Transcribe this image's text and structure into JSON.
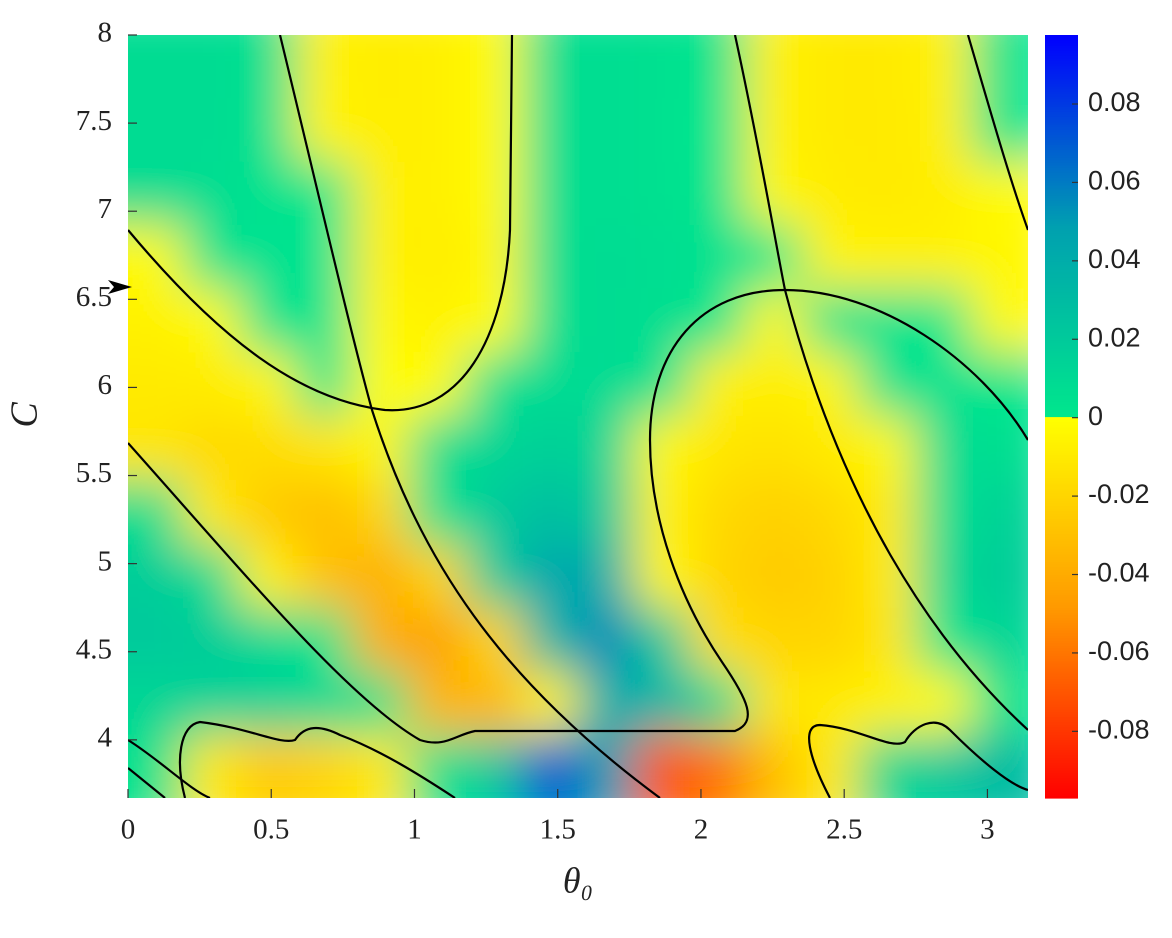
{
  "chart_data": {
    "type": "heatmap",
    "xlabel": "θ₀",
    "ylabel": "C",
    "xlim": [
      0,
      3.1416
    ],
    "ylim": [
      3.67,
      8
    ],
    "xticks": [
      0,
      0.5,
      1,
      1.5,
      2,
      2.5,
      3
    ],
    "yticks": [
      4,
      4.5,
      5,
      5.5,
      6,
      6.5,
      7,
      7.5,
      8
    ],
    "clim": [
      -0.097,
      0.0976
    ],
    "cticks": [
      -0.08,
      -0.06,
      -0.04,
      -0.02,
      0,
      0.02,
      0.04,
      0.06,
      0.08
    ],
    "colormap": {
      "negative": [
        "#ffff00",
        "#ff9900",
        "#ff0000"
      ],
      "positive": [
        "#00e88c",
        "#00a0b0",
        "#0000ff"
      ]
    },
    "x": [
      0.098,
      0.295,
      0.49,
      0.69,
      0.88,
      1.08,
      1.28,
      1.47,
      1.67,
      1.87,
      2.06,
      2.26,
      2.45,
      2.65,
      2.85,
      3.04
    ],
    "y": [
      7.82,
      7.46,
      7.1,
      6.74,
      6.38,
      6.02,
      5.66,
      5.29,
      4.93,
      4.57,
      4.21,
      3.85
    ],
    "z": [
      [
        0.008,
        0.008,
        0.005,
        -0.006,
        -0.008,
        -0.007,
        -0.002,
        0.006,
        0.007,
        0.005,
        0.002,
        -0.006,
        -0.01,
        -0.01,
        -0.006,
        0.003
      ],
      [
        0.008,
        0.008,
        0.004,
        -0.005,
        -0.008,
        -0.007,
        -0.002,
        0.006,
        0.007,
        0.005,
        0.001,
        -0.006,
        -0.01,
        -0.01,
        -0.007,
        0.002
      ],
      [
        0.008,
        0.007,
        0.004,
        0.001,
        -0.007,
        -0.007,
        -0.002,
        0.006,
        0.007,
        0.005,
        0.002,
        -0.004,
        -0.009,
        -0.01,
        -0.008,
        -0.002
      ],
      [
        -0.002,
        0.004,
        0.005,
        0.003,
        -0.006,
        -0.008,
        -0.004,
        0.006,
        0.008,
        0.007,
        0.004,
        0,
        -0.005,
        -0.006,
        -0.006,
        -0.004
      ],
      [
        -0.006,
        -0.002,
        0.004,
        0.002,
        -0.004,
        -0.006,
        -0.001,
        0.006,
        0.008,
        0.006,
        0.002,
        -0.003,
        0.003,
        0.003,
        0,
        -0.003
      ],
      [
        -0.01,
        -0.009,
        -0.004,
        0.002,
        -0.001,
        -0.002,
        0.005,
        0.008,
        0.009,
        0.004,
        -0.006,
        -0.008,
        -0.004,
        0.005,
        0.004,
        0.001
      ],
      [
        -0.012,
        -0.018,
        -0.016,
        -0.012,
        -0.004,
        0.006,
        0.012,
        0.016,
        0.012,
        -0.003,
        -0.012,
        -0.014,
        -0.01,
        -0.003,
        0.008,
        0.006
      ],
      [
        0.006,
        -0.01,
        -0.025,
        -0.03,
        -0.02,
        0.004,
        0.02,
        0.028,
        0.02,
        -0.006,
        -0.018,
        -0.022,
        -0.018,
        -0.01,
        0.006,
        0.014
      ],
      [
        0.018,
        0.008,
        -0.006,
        -0.03,
        -0.038,
        -0.02,
        0.02,
        0.045,
        0.04,
        -0.004,
        -0.02,
        -0.025,
        -0.022,
        -0.01,
        0.01,
        0.018
      ],
      [
        0.02,
        0.018,
        0.01,
        0.002,
        -0.038,
        -0.045,
        -0.02,
        0.035,
        0.055,
        0.02,
        -0.015,
        -0.02,
        -0.02,
        -0.012,
        0.002,
        0.012
      ],
      [
        0.012,
        0.015,
        0.015,
        0.01,
        0.004,
        -0.035,
        -0.035,
        -0.005,
        0.04,
        0.035,
        0.008,
        -0.012,
        -0.01,
        -0.006,
        -0.002,
        0.002
      ],
      [
        0.004,
        -0.01,
        -0.025,
        -0.02,
        -0.01,
        0.004,
        0.02,
        0.07,
        0.05,
        -0.07,
        -0.06,
        -0.03,
        -0.01,
        0.01,
        0.02,
        0.03
      ]
    ]
  }
}
